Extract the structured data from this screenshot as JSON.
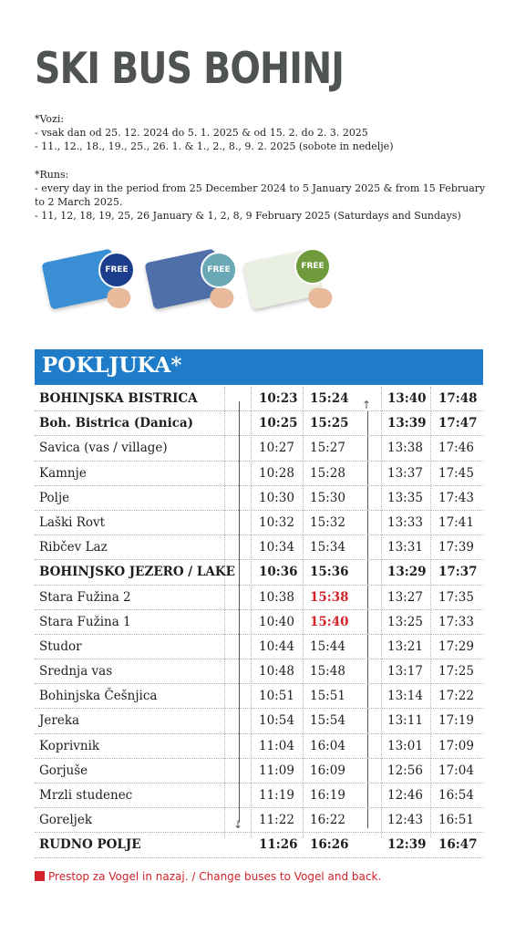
{
  "title": "SKI BUS BOHINJ",
  "notes": {
    "sl_heading": "*Vozi:",
    "sl_line1": "- vsak dan od 25. 12. 2024 do 5. 1. 2025 & od 15. 2. do 2. 3. 2025",
    "sl_line2": "- 11., 12., 18., 19., 25., 26. 1. & 1., 2., 8., 9. 2. 2025 (sobote in nedelje)",
    "en_heading": "*Runs:",
    "en_line1": "- every day in the period from 25 December 2024 to 5 January 2025 & from 15 February to 2 March 2025.",
    "en_line2": "- 11, 12, 18, 19, 25, 26 January & 1, 2, 8, 9 February 2025 (Saturdays and Sundays)"
  },
  "cards": [
    {
      "badge": "FREE",
      "color": "#3a8fd4",
      "badge_color": "#1d3e8c"
    },
    {
      "badge": "FREE",
      "color": "#4f6fa8",
      "badge_color": "#6aa8b6"
    },
    {
      "badge": "FREE",
      "color": "#e9efe1",
      "badge_color": "#6f9b3c"
    }
  ],
  "section_title": "POKLJUKA*",
  "rows": [
    {
      "stop": "BOHINJSKA BISTRICA",
      "bold": true,
      "t1": "10:23",
      "t2": "15:24",
      "t3": "13:40",
      "t4": "17:48"
    },
    {
      "stop": "Boh. Bistrica (Danica)",
      "bold": true,
      "t1": "10:25",
      "t2": "15:25",
      "t3": "13:39",
      "t4": "17:47"
    },
    {
      "stop": "Savica (vas / village)",
      "t1": "10:27",
      "t2": "15:27",
      "t3": "13:38",
      "t4": "17:46"
    },
    {
      "stop": "Kamnje",
      "t1": "10:28",
      "t2": "15:28",
      "t3": "13:37",
      "t4": "17:45"
    },
    {
      "stop": "Polje",
      "t1": "10:30",
      "t2": "15:30",
      "t3": "13:35",
      "t4": "17:43"
    },
    {
      "stop": "Laški Rovt",
      "t1": "10:32",
      "t2": "15:32",
      "t3": "13:33",
      "t4": "17:41"
    },
    {
      "stop": "Ribčev Laz",
      "t1": "10:34",
      "t2": "15:34",
      "t3": "13:31",
      "t4": "17:39"
    },
    {
      "stop": "BOHINJSKO JEZERO / LAKE",
      "bold": true,
      "t1": "10:36",
      "t2": "15:36",
      "t3": "13:29",
      "t4": "17:37"
    },
    {
      "stop": "Stara Fužina 2",
      "t1": "10:38",
      "t2": "15:38",
      "t2_red": true,
      "t3": "13:27",
      "t4": "17:35"
    },
    {
      "stop": "Stara Fužina 1",
      "t1": "10:40",
      "t2": "15:40",
      "t2_red": true,
      "t3": "13:25",
      "t4": "17:33"
    },
    {
      "stop": "Studor",
      "t1": "10:44",
      "t2": "15:44",
      "t3": "13:21",
      "t4": "17:29"
    },
    {
      "stop": "Srednja vas",
      "t1": "10:48",
      "t2": "15:48",
      "t3": "13:17",
      "t4": "17:25"
    },
    {
      "stop": "Bohinjska Češnjica",
      "t1": "10:51",
      "t2": "15:51",
      "t3": "13:14",
      "t4": "17:22"
    },
    {
      "stop": "Jereka",
      "t1": "10:54",
      "t2": "15:54",
      "t3": "13:11",
      "t4": "17:19"
    },
    {
      "stop": "Koprivnik",
      "t1": "11:04",
      "t2": "16:04",
      "t3": "13:01",
      "t4": "17:09"
    },
    {
      "stop": "Gorjuše",
      "t1": "11:09",
      "t2": "16:09",
      "t3": "12:56",
      "t4": "17:04"
    },
    {
      "stop": "Mrzli studenec",
      "t1": "11:19",
      "t2": "16:19",
      "t3": "12:46",
      "t4": "16:54"
    },
    {
      "stop": "Goreljek",
      "t1": "11:22",
      "t2": "16:22",
      "t3": "12:43",
      "t4": "16:51"
    },
    {
      "stop": "RUDNO POLJE",
      "bold": true,
      "t1": "11:26",
      "t2": "16:26",
      "t3": "12:39",
      "t4": "16:47"
    }
  ],
  "footnote": "Prestop za Vogel in nazaj. / Change buses to Vogel and back."
}
